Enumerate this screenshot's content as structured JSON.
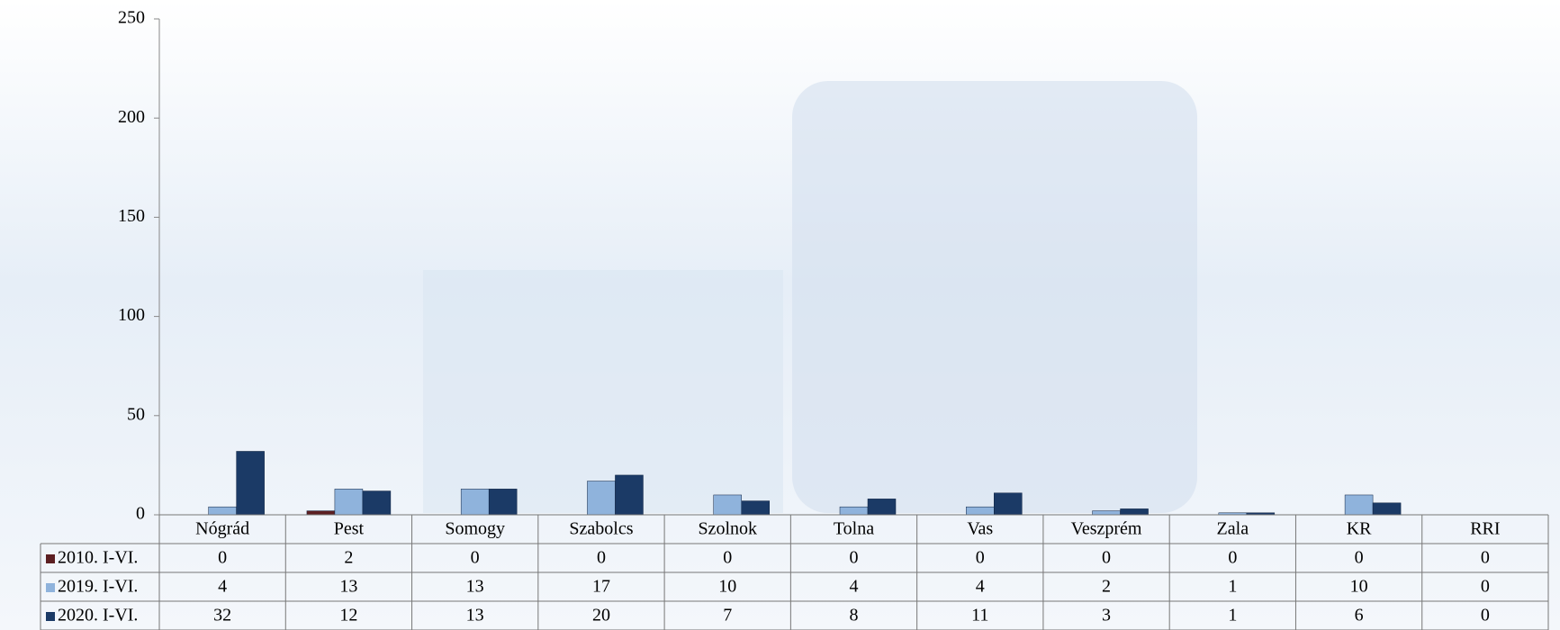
{
  "chart_data": {
    "type": "bar",
    "categories": [
      "Nógrád",
      "Pest",
      "Somogy",
      "Szabolcs",
      "Szolnok",
      "Tolna",
      "Vas",
      "Veszprém",
      "Zala",
      "KR",
      "RRI"
    ],
    "series": [
      {
        "name": "2010. I-VI.",
        "color": "#5c1f22",
        "values": [
          0,
          2,
          0,
          0,
          0,
          0,
          0,
          0,
          0,
          0,
          0
        ]
      },
      {
        "name": "2019. I-VI.",
        "color": "#8fb3dc",
        "values": [
          4,
          13,
          13,
          17,
          10,
          4,
          4,
          2,
          1,
          10,
          0
        ]
      },
      {
        "name": "2020. I-VI.",
        "color": "#1b3a66",
        "values": [
          32,
          12,
          13,
          20,
          7,
          8,
          11,
          3,
          1,
          6,
          0
        ]
      }
    ],
    "ylim": [
      0,
      250
    ],
    "yticks": [
      0,
      50,
      100,
      150,
      200,
      250
    ],
    "grid": false,
    "data_table": true
  }
}
